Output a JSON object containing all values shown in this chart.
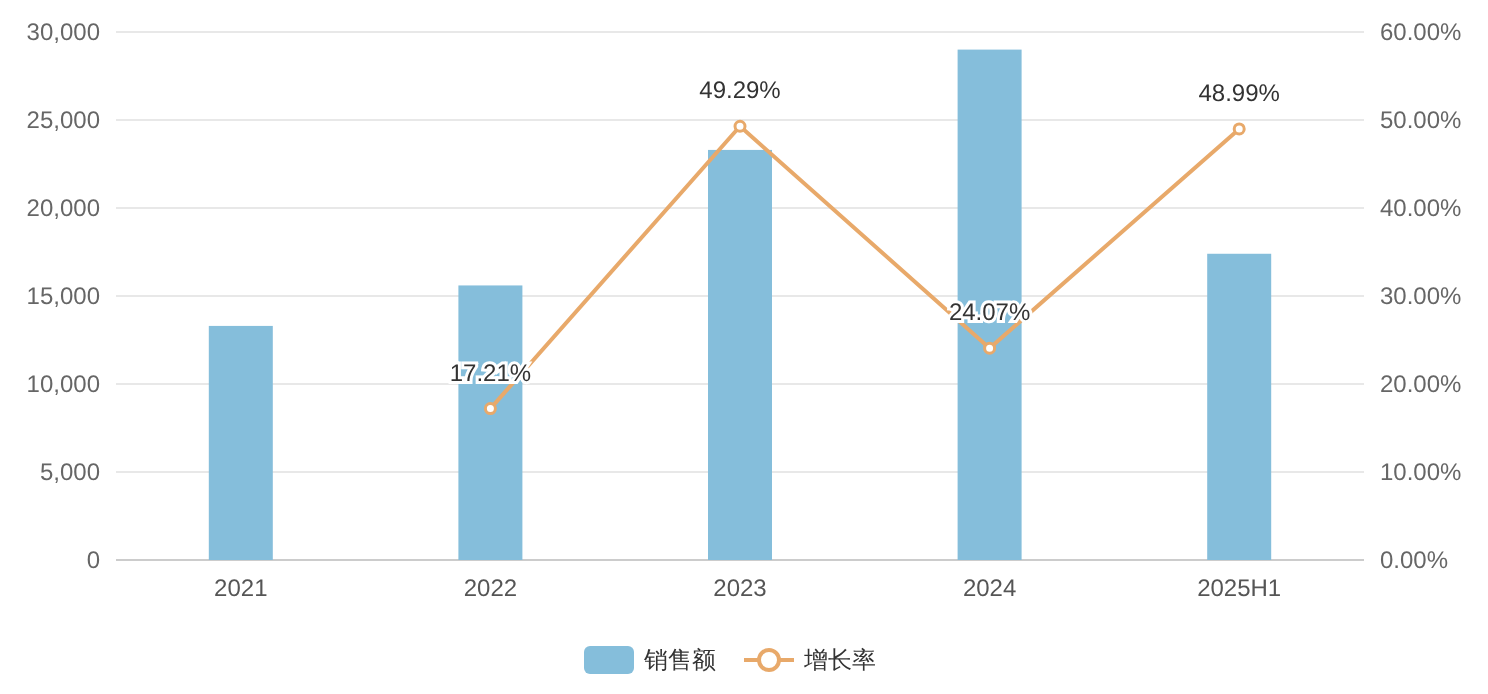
{
  "chart_data": {
    "type": "bar",
    "categories": [
      "2021",
      "2022",
      "2023",
      "2024",
      "2025H1"
    ],
    "series": [
      {
        "name": "销售额",
        "color": "#85bedb",
        "values": [
          13300,
          15600,
          23300,
          29000,
          17400
        ]
      },
      {
        "name": "增长率",
        "type": "line",
        "axis": "y2",
        "color": "#e8a96a",
        "marker": "circle",
        "values": [
          null,
          17.21,
          49.29,
          24.07,
          48.99
        ],
        "value_labels": [
          null,
          "17.21%",
          "49.29%",
          "24.07%",
          "48.99%"
        ]
      }
    ],
    "ylim": [
      0,
      30000
    ],
    "yticks": [
      0,
      {
        "value": 5000,
        "label": "5,000"
      },
      {
        "value": 10000,
        "label": "10,000"
      },
      {
        "value": 15000,
        "label": "15,000"
      },
      {
        "value": 20000,
        "label": "20,000"
      },
      {
        "value": 25000,
        "label": "25,000"
      },
      {
        "value": 30000,
        "label": "30,000"
      }
    ],
    "y2lim": [
      0,
      60
    ],
    "y2ticks": [
      {
        "value": 0,
        "label": "0.00%"
      },
      {
        "value": 10,
        "label": "10.00%"
      },
      {
        "value": 20,
        "label": "20.00%"
      },
      {
        "value": 30,
        "label": "30.00%"
      },
      {
        "value": 40,
        "label": "40.00%"
      },
      {
        "value": 50,
        "label": "50.00%"
      },
      {
        "value": 60,
        "label": "60.00%"
      }
    ],
    "grid": "y",
    "legend": "bottom"
  }
}
